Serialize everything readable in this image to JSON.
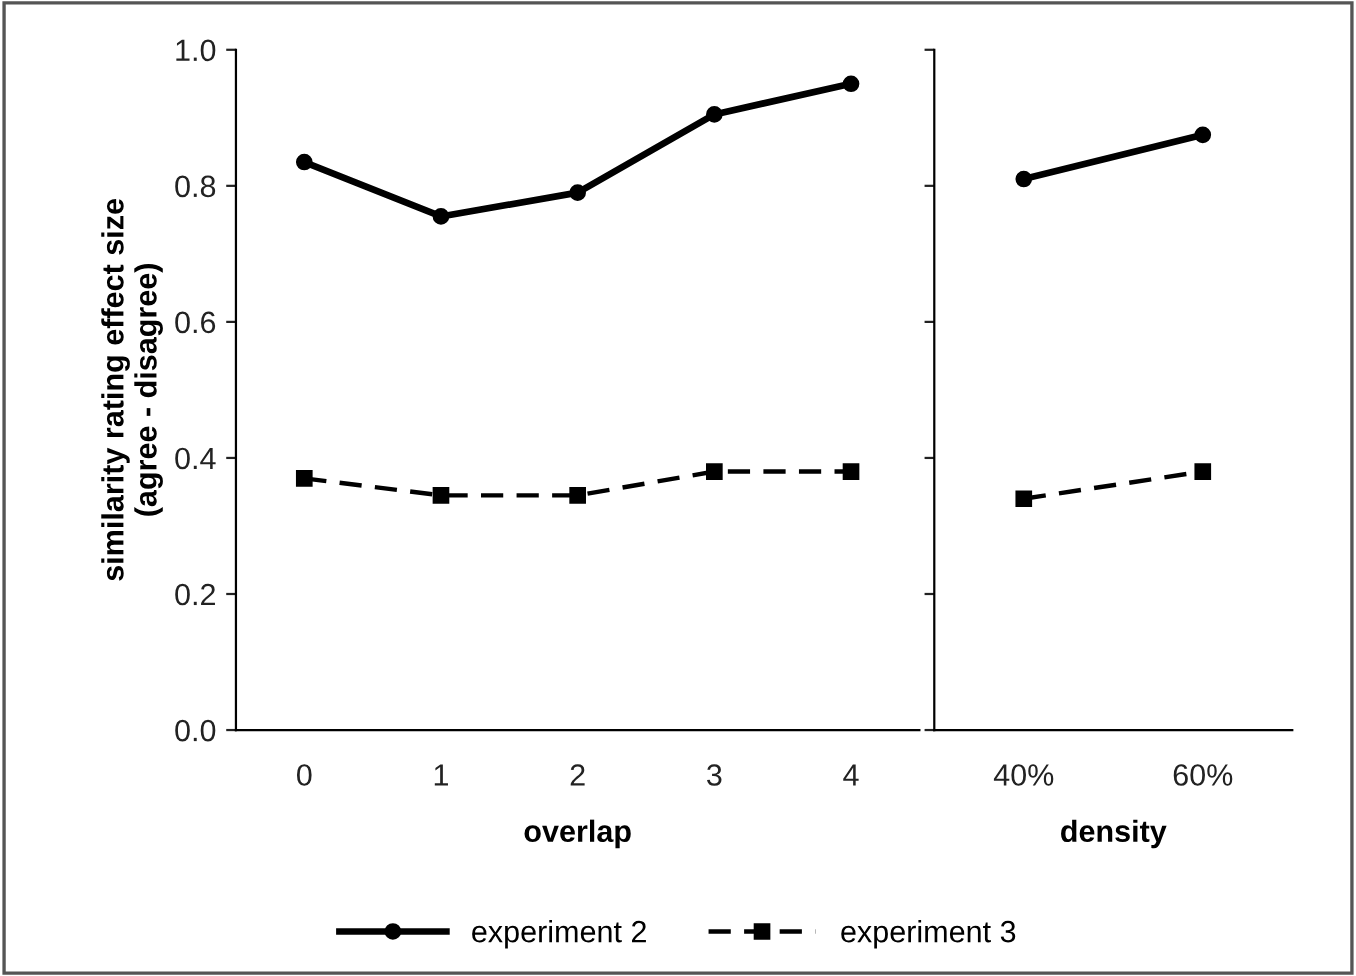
{
  "chart_data": [
    {
      "type": "line",
      "ylabel": "similarity rating effect size\n(agree - disagree)",
      "xlabel": "overlap",
      "categories": [
        "0",
        "1",
        "2",
        "3",
        "4"
      ],
      "ylim": [
        0,
        1
      ],
      "yticks": [
        {
          "value": 0,
          "label": "0.0"
        },
        {
          "value": 0.2,
          "label": "0.2"
        },
        {
          "value": 0.4,
          "label": "0.4"
        },
        {
          "value": 0.6,
          "label": "0.6"
        },
        {
          "value": 0.8,
          "label": "0.8"
        },
        {
          "value": 1,
          "label": "1.0"
        }
      ],
      "grid": false,
      "legend": "bottom",
      "series": [
        {
          "name": "experiment 2",
          "color": "#000000",
          "marker": "circle",
          "line_style": "solid",
          "values": [
            0.835,
            0.755,
            0.79,
            0.905,
            0.95
          ]
        },
        {
          "name": "experiment 3",
          "color": "#000000",
          "marker": "square",
          "line_style": "dashed",
          "values": [
            0.37,
            0.345,
            0.345,
            0.38,
            0.38
          ]
        }
      ]
    },
    {
      "type": "line",
      "xlabel": "density",
      "categories": [
        "40%",
        "60%"
      ],
      "ylim": [
        0,
        1
      ],
      "yticks": [
        {
          "value": 0,
          "label": null
        },
        {
          "value": 0.2,
          "label": null
        },
        {
          "value": 0.4,
          "label": null
        },
        {
          "value": 0.6,
          "label": null
        },
        {
          "value": 0.8,
          "label": null
        },
        {
          "value": 1,
          "label": null
        }
      ],
      "grid": false,
      "tick_labels": "x",
      "series": [
        {
          "color": "#000000",
          "marker": "circle",
          "line_style": "solid",
          "values": [
            0.81,
            0.875
          ]
        },
        {
          "color": "#000000",
          "marker": "square",
          "line_style": "dashed",
          "values": [
            0.34,
            0.38
          ]
        }
      ]
    }
  ]
}
